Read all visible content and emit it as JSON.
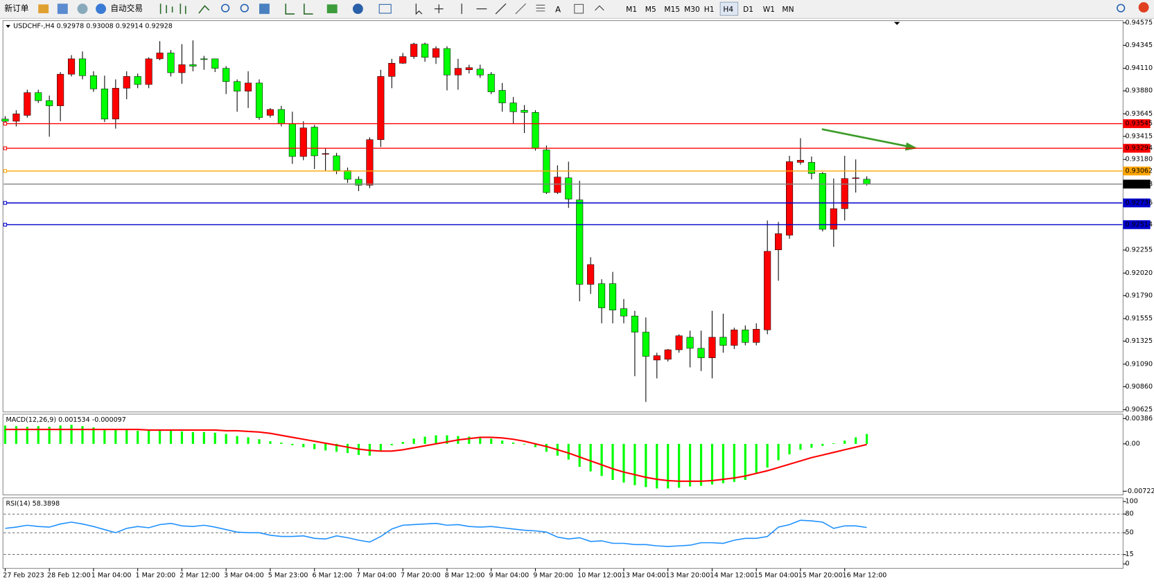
{
  "toolbar": {
    "buttons": [
      "新订单",
      "自动交易"
    ],
    "timeframes": [
      "M1",
      "M5",
      "M15",
      "M30",
      "H1",
      "H4",
      "D1",
      "W1",
      "MN"
    ],
    "active": "H4"
  },
  "chart_data": [
    {
      "type": "candlestick",
      "title": "USDCHF-,H4 0.92978 0.93008 0.92914 0.92928",
      "bull_color": "#ff0000",
      "bear_color": "#00ff00",
      "categories": [
        "27 Feb 2023",
        null,
        null,
        null,
        "28 Feb 12:00",
        null,
        null,
        null,
        "1 Mar 04:00",
        null,
        null,
        null,
        "1 Mar 20:00",
        null,
        null,
        null,
        "2 Mar 12:00",
        null,
        null,
        null,
        "3 Mar 04:00",
        null,
        null,
        null,
        "5 Mar 23:00",
        null,
        null,
        null,
        "6 Mar 12:00",
        null,
        null,
        null,
        "7 Mar 04:00",
        null,
        null,
        null,
        "7 Mar 20:00",
        null,
        null,
        null,
        "8 Mar 12:00",
        null,
        null,
        null,
        "9 Mar 04:00",
        null,
        null,
        null,
        "9 Mar 20:00",
        null,
        null,
        null,
        "10 Mar 12:00",
        null,
        null,
        null,
        "13 Mar 04:00",
        null,
        null,
        null,
        "13 Mar 20:00",
        null,
        null,
        null,
        "14 Mar 12:00",
        null,
        null,
        null,
        "15 Mar 04:00",
        null,
        null,
        null,
        "15 Mar 20:00",
        null,
        null,
        null,
        "16 Mar 12:00",
        null,
        null
      ],
      "open": [
        0.93592,
        0.9357,
        0.9363,
        0.93862,
        0.9378,
        0.93727,
        0.9405,
        0.94207,
        0.94035,
        0.939,
        0.93592,
        0.93907,
        0.94027,
        0.93945,
        0.94207,
        0.94267,
        0.94065,
        0.94147,
        0.94207,
        0.94207,
        0.9411,
        0.93975,
        0.93877,
        0.9396,
        0.9363,
        0.9369,
        0.93547,
        0.9321,
        0.9351,
        0.93232,
        0.93217,
        0.93067,
        0.92977,
        0.92917,
        0.93382,
        0.94027,
        0.94162,
        0.9423,
        0.94357,
        0.94222,
        0.94312,
        0.94042,
        0.94095,
        0.94102,
        0.9405,
        0.93885,
        0.93757,
        0.93682,
        0.9366,
        0.93277,
        0.92842,
        0.92992,
        0.92767,
        0.91905,
        0.91912,
        0.91912,
        0.91657,
        0.91582,
        0.91417,
        0.91132,
        0.9114,
        0.91237,
        0.91365,
        0.91252,
        0.91155,
        0.91365,
        0.91282,
        0.9144,
        0.91312,
        0.9144,
        0.92257,
        0.92407,
        0.9315,
        0.9315,
        0.93037,
        0.92467,
        0.92677,
        0.92985,
        0.92978
      ],
      "high": [
        0.93622,
        0.93682,
        0.93892,
        0.93892,
        0.93832,
        0.94072,
        0.94245,
        0.94282,
        0.9408,
        0.94035,
        0.93997,
        0.9408,
        0.94057,
        0.94222,
        0.94387,
        0.94297,
        0.94357,
        0.94395,
        0.94237,
        0.94207,
        0.94132,
        0.93997,
        0.9408,
        0.93997,
        0.93705,
        0.93727,
        0.93667,
        0.9357,
        0.93532,
        0.93292,
        0.93247,
        0.93097,
        0.93007,
        0.93405,
        0.94095,
        0.94207,
        0.94267,
        0.94372,
        0.94372,
        0.94335,
        0.94335,
        0.94207,
        0.94147,
        0.94147,
        0.94072,
        0.9396,
        0.93817,
        0.93735,
        0.93682,
        0.93322,
        0.9312,
        0.93157,
        0.92962,
        0.92182,
        0.91957,
        0.92032,
        0.91755,
        0.91635,
        0.91567,
        0.91207,
        0.91245,
        0.91395,
        0.91432,
        0.91432,
        0.91635,
        0.91605,
        0.91462,
        0.91485,
        0.91507,
        0.92557,
        0.92542,
        0.93217,
        0.93397,
        0.9321,
        0.93052,
        0.92985,
        0.93217,
        0.9318,
        0.93008
      ],
      "low": [
        0.93532,
        0.93517,
        0.93607,
        0.93757,
        0.93412,
        0.9357,
        0.94027,
        0.93997,
        0.9387,
        0.93562,
        0.93495,
        0.93795,
        0.93907,
        0.93907,
        0.94192,
        0.94027,
        0.93952,
        0.9408,
        0.94095,
        0.94072,
        0.93847,
        0.93667,
        0.93705,
        0.93585,
        0.93607,
        0.93517,
        0.93135,
        0.93172,
        0.93082,
        0.93067,
        0.9303,
        0.9294,
        0.92857,
        0.92887,
        0.93307,
        0.93907,
        0.94155,
        0.94207,
        0.94177,
        0.94155,
        0.93885,
        0.93892,
        0.94057,
        0.94012,
        0.93847,
        0.93667,
        0.93547,
        0.9345,
        0.9327,
        0.92827,
        0.92827,
        0.92685,
        0.91732,
        0.91807,
        0.91507,
        0.91507,
        0.91507,
        0.90967,
        0.90705,
        0.90945,
        0.91117,
        0.91207,
        0.91057,
        0.9102,
        0.90945,
        0.91207,
        0.91245,
        0.91282,
        0.91282,
        0.91395,
        0.91942,
        0.9237,
        0.93127,
        0.92977,
        0.92445,
        0.92287,
        0.92557,
        0.92842,
        0.92914
      ],
      "close": [
        0.9357,
        0.93645,
        0.93862,
        0.9378,
        0.93727,
        0.9405,
        0.94207,
        0.94035,
        0.939,
        0.93592,
        0.93907,
        0.94027,
        0.93945,
        0.94207,
        0.94267,
        0.94065,
        0.94147,
        0.94132,
        0.942,
        0.9411,
        0.93975,
        0.93877,
        0.9396,
        0.93607,
        0.9369,
        0.93547,
        0.9321,
        0.93502,
        0.93217,
        0.9324,
        0.93067,
        0.92977,
        0.92917,
        0.93382,
        0.94027,
        0.94162,
        0.9423,
        0.94357,
        0.94222,
        0.94312,
        0.94042,
        0.9411,
        0.94117,
        0.94042,
        0.9387,
        0.93757,
        0.93667,
        0.9366,
        0.93292,
        0.92842,
        0.93,
        0.92775,
        0.91905,
        0.92107,
        0.91665,
        0.91642,
        0.91582,
        0.91417,
        0.9117,
        0.91177,
        0.91237,
        0.9138,
        0.91252,
        0.91155,
        0.91365,
        0.91282,
        0.9144,
        0.91312,
        0.91447,
        0.92242,
        0.92422,
        0.93157,
        0.93172,
        0.93037,
        0.92467,
        0.92677,
        0.92985,
        0.92992,
        0.92928
      ],
      "ylim": [
        0.90625,
        0.94575
      ],
      "yticks": [
        0.94575,
        0.94345,
        {
          "value": 0.9411,
          "label": "0.94110"
        },
        {
          "value": 0.9388,
          "label": "0.93880"
        },
        0.93645,
        0.93415,
        {
          "value": 0.9318,
          "label": "0.93180"
        },
        0.92255,
        {
          "value": 0.9202,
          "label": "0.92020"
        },
        {
          "value": 0.9179,
          "label": "0.91790"
        },
        0.91555,
        0.91325,
        {
          "value": 0.9109,
          "label": "0.91090"
        },
        {
          "value": 0.9086,
          "label": "0.90860"
        },
        0.90625
      ],
      "levels": [
        {
          "value": 0.93545,
          "color": "#ff0000"
        },
        {
          "value": 0.93294,
          "color": "#ff0000"
        },
        {
          "value": 0.93062,
          "color": "#ffa500"
        },
        {
          "value": 0.92928,
          "color": "#000000"
        },
        {
          "value": 0.92736,
          "color": "#0000cc"
        },
        {
          "value": 0.92514,
          "color": "#0000cc"
        }
      ]
    },
    {
      "type": "macd",
      "title": "MACD(12,26,9) 0.001534 -0.000097",
      "histogram": {
        "color": "#00ff00",
        "values": [
          0.0028,
          0.0027,
          0.0026,
          0.0027,
          0.0026,
          0.0028,
          0.0029,
          0.0027,
          0.0025,
          0.0022,
          0.0022,
          0.0021,
          0.002,
          0.002,
          0.0021,
          0.002,
          0.0019,
          0.0018,
          0.0018,
          0.0017,
          0.0015,
          0.0012,
          0.001,
          0.0007,
          0.0004,
          0.0002,
          -0.0002,
          -0.0005,
          -0.0008,
          -0.001,
          -0.0012,
          -0.0014,
          -0.0017,
          -0.0018,
          -0.001,
          -0.0002,
          0.0003,
          0.0008,
          0.0011,
          0.0013,
          0.0013,
          0.0012,
          0.0011,
          0.001,
          0.0008,
          0.0005,
          0.0002,
          -0.0001,
          -0.0005,
          -0.0012,
          -0.0018,
          -0.0024,
          -0.0035,
          -0.0042,
          -0.0049,
          -0.0055,
          -0.0059,
          -0.0063,
          -0.0066,
          -0.0068,
          -0.0068,
          -0.0067,
          -0.0065,
          -0.0064,
          -0.0062,
          -0.006,
          -0.0058,
          -0.0055,
          -0.0044,
          -0.0036,
          -0.0025,
          -0.0016,
          -0.0009,
          -0.0006,
          -0.0003,
          0.0001,
          0.0005,
          0.001,
          0.0015
        ]
      },
      "signal": {
        "color": "#ff0000",
        "values": [
          0.0022,
          0.0022,
          0.0022,
          0.0022,
          0.0022,
          0.0022,
          0.0022,
          0.0022,
          0.0022,
          0.0022,
          0.0022,
          0.0022,
          0.0022,
          0.0021,
          0.0021,
          0.0021,
          0.0021,
          0.0021,
          0.0021,
          0.0021,
          0.002,
          0.002,
          0.0019,
          0.0018,
          0.0016,
          0.0013,
          0.001,
          0.0007,
          0.0004,
          0.0001,
          -0.0002,
          -0.0005,
          -0.0008,
          -0.001,
          -0.0011,
          -0.0011,
          -0.0009,
          -0.0006,
          -0.0003,
          0,
          0.0003,
          0.0006,
          0.0008,
          0.001,
          0.001,
          0.0009,
          0.0007,
          0.0004,
          0,
          -0.0004,
          -0.0009,
          -0.0014,
          -0.002,
          -0.0026,
          -0.0032,
          -0.0038,
          -0.0043,
          -0.0047,
          -0.0051,
          -0.0054,
          -0.0056,
          -0.0057,
          -0.0057,
          -0.0057,
          -0.0056,
          -0.0054,
          -0.0052,
          -0.0049,
          -0.0045,
          -0.0041,
          -0.0036,
          -0.0031,
          -0.0026,
          -0.0021,
          -0.0017,
          -0.0013,
          -0.0009,
          -0.0005,
          -9.7e-05
        ]
      },
      "ylim": [
        -0.007224,
        0.00386
      ],
      "yticks": [
        0.00386,
        {
          "value": 0,
          "label": "0.00"
        },
        -0.007224
      ]
    },
    {
      "type": "line",
      "title": "RSI(14) 58.3898",
      "color": "#1e90ff",
      "values": [
        57,
        59,
        62,
        60,
        59,
        64,
        67,
        64,
        60,
        55,
        50,
        57,
        60,
        58,
        63,
        65,
        61,
        60,
        62,
        59,
        55,
        51,
        50,
        50,
        46,
        44,
        44,
        45,
        41,
        40,
        45,
        42,
        38,
        35,
        44,
        56,
        62,
        63,
        64,
        65,
        62,
        63,
        60,
        59,
        60,
        58,
        56,
        54,
        53,
        51,
        43,
        40,
        42,
        36,
        37,
        33,
        33,
        31,
        31,
        29,
        28,
        29,
        30,
        34,
        34,
        33,
        38,
        41,
        41,
        44,
        59,
        63,
        70,
        69,
        67,
        57,
        61,
        61,
        58.3898
      ],
      "ylim": [
        0,
        100
      ],
      "yticks": [
        100,
        80,
        50,
        15,
        0
      ]
    }
  ]
}
